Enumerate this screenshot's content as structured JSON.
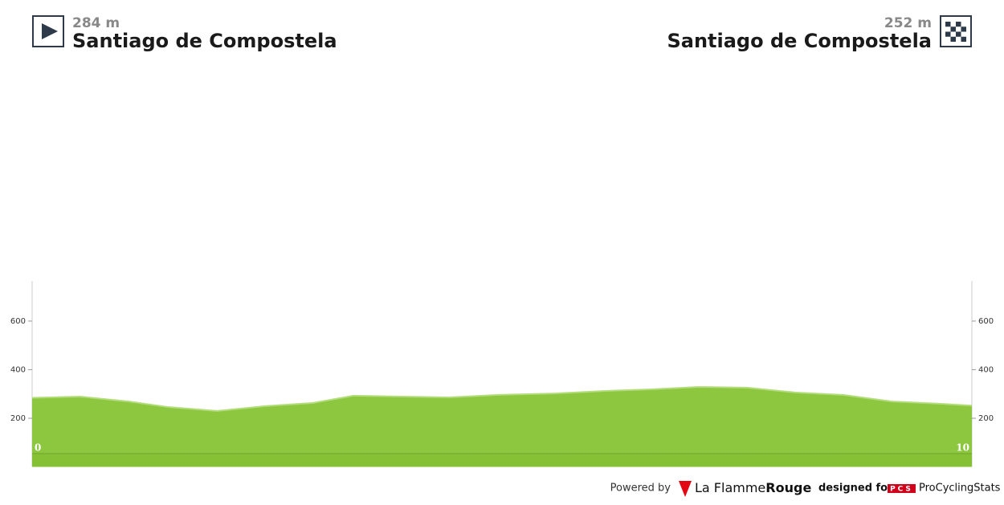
{
  "header": {
    "start": {
      "elevation": "284 m",
      "name": "Santiago de Compostela"
    },
    "finish": {
      "elevation": "252 m",
      "name": "Santiago de Compostela"
    }
  },
  "footer": {
    "powered": "Powered by",
    "brand_a": "La Flamme",
    "brand_b": "Rouge",
    "designed": "designed for",
    "pcs_logo": "PCS",
    "pcs": "ProCyclingStats"
  },
  "chart_data": {
    "type": "area",
    "color": "#8dc63f",
    "x": [
      0,
      0.51,
      1.03,
      1.45,
      1.97,
      2.48,
      2.99,
      3.42,
      3.93,
      4.44,
      4.96,
      5.56,
      6.07,
      6.58,
      7.09,
      7.61,
      8.12,
      8.63,
      9.15,
      9.66,
      10
    ],
    "values": [
      284,
      289,
      269,
      246,
      230,
      250,
      263,
      293,
      289,
      286,
      296,
      302,
      312,
      319,
      329,
      326,
      306,
      296,
      269,
      260,
      252
    ],
    "xlim": [
      0,
      10
    ],
    "xticks": [
      0,
      10
    ],
    "ylim": [
      0,
      765
    ],
    "yticks": [
      200,
      400,
      600
    ]
  }
}
